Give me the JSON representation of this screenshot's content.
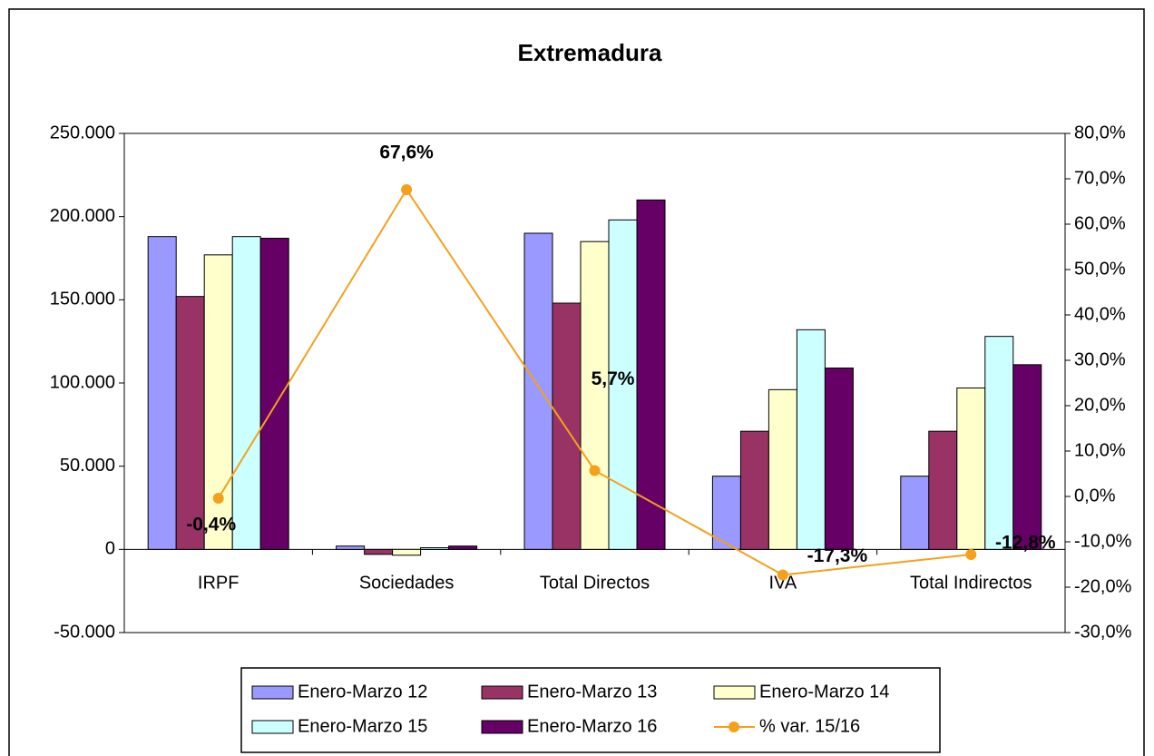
{
  "chart_data": {
    "type": "bar",
    "title": "Extremadura",
    "categories": [
      "IRPF",
      "Sociedades",
      "Total Directos",
      "IVA",
      "Total Indirectos"
    ],
    "series": [
      {
        "name": "Enero-Marzo 12",
        "color": "#9999ff",
        "values": [
          188000,
          2000,
          190000,
          44000,
          44000
        ]
      },
      {
        "name": "Enero-Marzo 13",
        "color": "#993366",
        "values": [
          152000,
          -3000,
          148000,
          71000,
          71000
        ]
      },
      {
        "name": "Enero-Marzo 14",
        "color": "#ffffcc",
        "values": [
          177000,
          -3500,
          185000,
          96000,
          97000
        ]
      },
      {
        "name": "Enero-Marzo 15",
        "color": "#ccffff",
        "values": [
          188000,
          1000,
          198000,
          132000,
          128000
        ]
      },
      {
        "name": "Enero-Marzo 16",
        "color": "#660066",
        "values": [
          187000,
          2000,
          210000,
          109000,
          111000
        ]
      },
      {
        "name": "% var. 15/16",
        "color": "#f5a01a",
        "type": "line",
        "axis": "y2",
        "values": [
          -0.4,
          67.6,
          5.7,
          -17.3,
          -12.8
        ],
        "value_labels": [
          "-0,4%",
          "67,6%",
          "5,7%",
          "-17,3%",
          "-12,8%"
        ]
      }
    ],
    "ylim": [
      -50000,
      250000
    ],
    "yticks": [
      {
        "value": -50000,
        "label": "-50.000"
      },
      0,
      {
        "value": 50000,
        "label": "50.000"
      },
      {
        "value": 100000,
        "label": "100.000"
      },
      {
        "value": 150000,
        "label": "150.000"
      },
      {
        "value": 200000,
        "label": "200.000"
      },
      {
        "value": 250000,
        "label": "250.000"
      }
    ],
    "y2lim": [
      -30,
      80
    ],
    "y2ticks": [
      {
        "value": -30,
        "label": "-30,0%"
      },
      {
        "value": -20,
        "label": "-20,0%"
      },
      {
        "value": -10,
        "label": "-10,0%"
      },
      {
        "value": 0,
        "label": "0,0%"
      },
      {
        "value": 10,
        "label": "10,0%"
      },
      {
        "value": 20,
        "label": "20,0%"
      },
      {
        "value": 30,
        "label": "30,0%"
      },
      {
        "value": 40,
        "label": "40,0%"
      },
      {
        "value": 50,
        "label": "50,0%"
      },
      {
        "value": 60,
        "label": "60,0%"
      },
      {
        "value": 70,
        "label": "70,0%"
      },
      {
        "value": 80,
        "label": "80,0%"
      }
    ],
    "grid": false,
    "legend": "bottom"
  }
}
